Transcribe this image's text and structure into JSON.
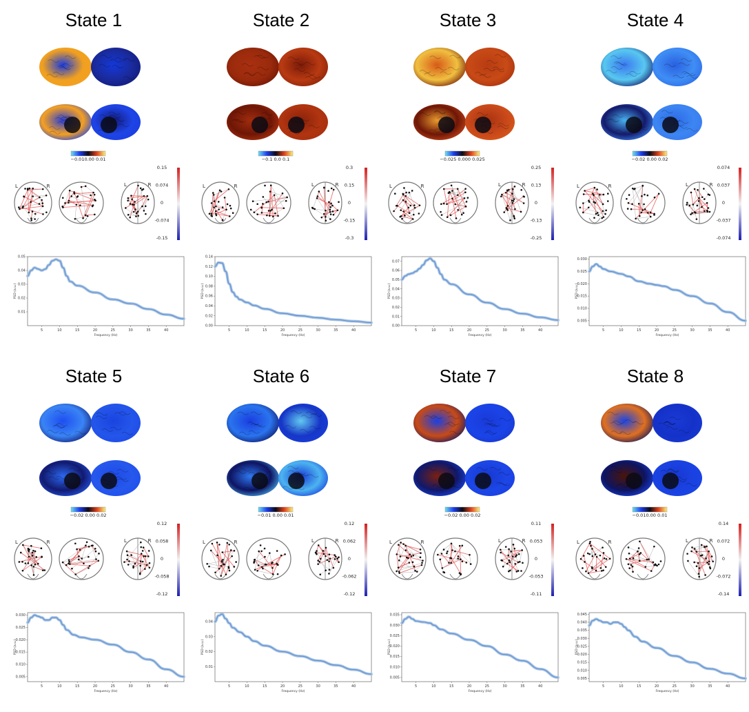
{
  "states": [
    {
      "title": "State 1",
      "brain_colorbar_ticks": "−0.010.00 0.01",
      "brain_colormap": "cold-hot",
      "brain_tones": [
        "#1a3ce0",
        "#f0a020",
        "#1438d8",
        "#1a2a9a",
        "#2a3fd8",
        "#f5a020",
        "#121a7a",
        "#1e44e6"
      ],
      "network_colorbar_ticks": [
        "0.15",
        "0.074",
        "0",
        "-0.074",
        "-0.15"
      ],
      "chart_data": {
        "type": "line",
        "xlabel": "Frequency (Hz)",
        "ylabel": "PSD (a.u.)",
        "xlim": [
          1,
          45
        ],
        "ylim": [
          0,
          0.05
        ],
        "x_ticks": [
          "5",
          "10",
          "15",
          "20",
          "25",
          "30",
          "35",
          "40"
        ],
        "y_ticks": [
          "0.01",
          "0.02",
          "0.03",
          "0.04",
          "0.05"
        ],
        "series": [
          {
            "x": [
              1,
              2,
              3,
              4,
              5,
              6,
              7,
              8,
              9,
              10,
              11,
              12,
              13,
              15,
              20,
              25,
              30,
              35,
              40,
              45
            ],
            "y": [
              0.036,
              0.04,
              0.042,
              0.041,
              0.04,
              0.041,
              0.044,
              0.047,
              0.048,
              0.047,
              0.042,
              0.036,
              0.032,
              0.029,
              0.024,
              0.019,
              0.016,
              0.012,
              0.008,
              0.005
            ]
          }
        ]
      }
    },
    {
      "title": "State 2",
      "brain_colorbar_ticks": "−0.1   0.0   0.1",
      "brain_colormap": "cold-hot",
      "brain_tones": [
        "#a83010",
        "#9a2a0c",
        "#7a1a08",
        "#b83a12",
        "#a02c0e",
        "#6e1606",
        "#8a220a",
        "#b03410"
      ],
      "network_colorbar_ticks": [
        "0.3",
        "0.15",
        "0",
        "-0.15",
        "-0.3"
      ],
      "chart_data": {
        "type": "line",
        "xlabel": "Frequency (Hz)",
        "ylabel": "PSD (a.u.)",
        "xlim": [
          1,
          45
        ],
        "ylim": [
          0,
          0.14
        ],
        "x_ticks": [
          "5",
          "10",
          "15",
          "20",
          "25",
          "30",
          "35",
          "40"
        ],
        "y_ticks": [
          "0.00",
          "0.02",
          "0.04",
          "0.06",
          "0.08",
          "0.10",
          "0.12",
          "0.14"
        ],
        "series": [
          {
            "x": [
              1,
              2,
              3,
              4,
              5,
              6,
              7,
              8,
              10,
              12,
              15,
              20,
              25,
              30,
              35,
              40,
              45
            ],
            "y": [
              0.12,
              0.128,
              0.127,
              0.11,
              0.085,
              0.068,
              0.059,
              0.053,
              0.047,
              0.041,
              0.034,
              0.025,
              0.02,
              0.016,
              0.012,
              0.009,
              0.006
            ]
          }
        ]
      }
    },
    {
      "title": "State 3",
      "brain_colorbar_ticks": "−0.025 0.000 0.025",
      "brain_colormap": "cold-hot",
      "brain_tones": [
        "#d85a18",
        "#f0c040",
        "#b83c12",
        "#c84a16",
        "#e89a30",
        "#6e1606",
        "#a83210",
        "#c8481a"
      ],
      "network_colorbar_ticks": [
        "0.25",
        "0.13",
        "0",
        "-0.13",
        "-0.25"
      ],
      "chart_data": {
        "type": "line",
        "xlabel": "Frequency (Hz)",
        "ylabel": "PSD (a.u.)",
        "xlim": [
          1,
          45
        ],
        "ylim": [
          0,
          0.075
        ],
        "x_ticks": [
          "5",
          "10",
          "15",
          "20",
          "25",
          "30",
          "35",
          "40"
        ],
        "y_ticks": [
          "0.00",
          "0.01",
          "0.02",
          "0.03",
          "0.04",
          "0.05",
          "0.06",
          "0.07"
        ],
        "series": [
          {
            "x": [
              1,
              2,
              3,
              4,
              5,
              6,
              7,
              8,
              9,
              10,
              11,
              12,
              13,
              15,
              20,
              25,
              30,
              35,
              40,
              45
            ],
            "y": [
              0.05,
              0.054,
              0.056,
              0.057,
              0.059,
              0.062,
              0.066,
              0.071,
              0.073,
              0.07,
              0.063,
              0.056,
              0.05,
              0.045,
              0.034,
              0.025,
              0.018,
              0.013,
              0.009,
              0.006
            ]
          }
        ]
      }
    },
    {
      "title": "State 4",
      "brain_colorbar_ticks": "−0.02   0.00   0.02",
      "brain_colormap": "cold-hot",
      "brain_tones": [
        "#3a78f0",
        "#58c8f0",
        "#2a60e0",
        "#3f8ef5",
        "#48b0f0",
        "#141a6a",
        "#2e6ae8",
        "#3c86f2"
      ],
      "network_colorbar_ticks": [
        "0.074",
        "0.037",
        "0",
        "-0.037",
        "-0.074"
      ],
      "chart_data": {
        "type": "line",
        "xlabel": "Frequency (Hz)",
        "ylabel": "PSD (a.u.)",
        "xlim": [
          1,
          45
        ],
        "ylim": [
          0.003,
          0.031
        ],
        "x_ticks": [
          "5",
          "10",
          "15",
          "20",
          "25",
          "30",
          "35",
          "40"
        ],
        "y_ticks": [
          "0.005",
          "0.010",
          "0.015",
          "0.020",
          "0.025",
          "0.030"
        ],
        "series": [
          {
            "x": [
              1,
              2,
              3,
              4,
              5,
              7,
              10,
              12,
              15,
              18,
              20,
              22,
              25,
              30,
              35,
              40,
              45
            ],
            "y": [
              0.025,
              0.027,
              0.028,
              0.027,
              0.026,
              0.025,
              0.024,
              0.023,
              0.021,
              0.02,
              0.0195,
              0.019,
              0.0175,
              0.015,
              0.012,
              0.0085,
              0.005
            ]
          }
        ]
      }
    },
    {
      "title": "State 5",
      "brain_colorbar_ticks": "−0.02   0.00   0.02",
      "brain_colormap": "cold-hot",
      "brain_tones": [
        "#1e4ef0",
        "#3a84f5",
        "#1a44e0",
        "#2456ea",
        "#2c68f0",
        "#121a70",
        "#1e4ae8",
        "#2658ec"
      ],
      "network_colorbar_ticks": [
        "0.12",
        "0.058",
        "0",
        "-0.058",
        "-0.12"
      ],
      "chart_data": {
        "type": "line",
        "xlabel": "Frequency (Hz)",
        "ylabel": "PSD (a.u.)",
        "xlim": [
          1,
          45
        ],
        "ylim": [
          0.003,
          0.031
        ],
        "x_ticks": [
          "5",
          "10",
          "15",
          "20",
          "25",
          "30",
          "35",
          "40"
        ],
        "y_ticks": [
          "0.005",
          "0.010",
          "0.015",
          "0.020",
          "0.025",
          "0.030"
        ],
        "series": [
          {
            "x": [
              1,
              2,
              3,
              4,
              5,
              6,
              7,
              8,
              9,
              10,
              11,
              12,
              14,
              16,
              20,
              25,
              30,
              35,
              40,
              45
            ],
            "y": [
              0.027,
              0.029,
              0.03,
              0.0295,
              0.029,
              0.028,
              0.028,
              0.029,
              0.029,
              0.028,
              0.026,
              0.024,
              0.022,
              0.021,
              0.02,
              0.018,
              0.015,
              0.012,
              0.008,
              0.005
            ]
          }
        ]
      }
    },
    {
      "title": "State 6",
      "brain_colorbar_ticks": "−0.01   0.00   0.01",
      "brain_colormap": "cold-hot",
      "brain_tones": [
        "#1a3ee0",
        "#2a74ee",
        "#62c8f0",
        "#1636c8",
        "#2e78f0",
        "#0e1462",
        "#1a3ed8",
        "#4cb4f0"
      ],
      "network_colorbar_ticks": [
        "0.12",
        "0.062",
        "0",
        "-0.062",
        "-0.12"
      ],
      "chart_data": {
        "type": "line",
        "xlabel": "Frequency (Hz)",
        "ylabel": "PSD (a.u.)",
        "xlim": [
          1,
          45
        ],
        "ylim": [
          0,
          0.046
        ],
        "x_ticks": [
          "5",
          "10",
          "15",
          "20",
          "25",
          "30",
          "35",
          "40"
        ],
        "y_ticks": [
          "0.01",
          "0.02",
          "0.03",
          "0.04"
        ],
        "series": [
          {
            "x": [
              1,
              2,
              3,
              4,
              5,
              6,
              8,
              10,
              12,
              15,
              20,
              25,
              30,
              35,
              40,
              45
            ],
            "y": [
              0.04,
              0.044,
              0.045,
              0.042,
              0.039,
              0.036,
              0.033,
              0.03,
              0.027,
              0.024,
              0.02,
              0.017,
              0.014,
              0.011,
              0.008,
              0.005
            ]
          }
        ]
      }
    },
    {
      "title": "State 7",
      "brain_colorbar_ticks": "−0.02   0.00   0.02",
      "brain_colormap": "cold-hot",
      "brain_tones": [
        "#1a40e4",
        "#c84a16",
        "#1a3ad8",
        "#1a44e8",
        "#7a2010",
        "#10186a",
        "#1838d0",
        "#1c46e6"
      ],
      "network_colorbar_ticks": [
        "0.11",
        "0.053",
        "0",
        "-0.053",
        "-0.11"
      ],
      "chart_data": {
        "type": "line",
        "xlabel": "Frequency (Hz)",
        "ylabel": "PSD (a.u.)",
        "xlim": [
          1,
          45
        ],
        "ylim": [
          0.003,
          0.036
        ],
        "x_ticks": [
          "5",
          "10",
          "15",
          "20",
          "25",
          "30",
          "35",
          "40"
        ],
        "y_ticks": [
          "0.005",
          "0.010",
          "0.015",
          "0.020",
          "0.025",
          "0.030",
          "0.035"
        ],
        "series": [
          {
            "x": [
              1,
              2,
              3,
              4,
              5,
              7,
              9,
              10,
              12,
              15,
              20,
              25,
              30,
              35,
              40,
              45
            ],
            "y": [
              0.031,
              0.033,
              0.034,
              0.033,
              0.032,
              0.0315,
              0.031,
              0.03,
              0.028,
              0.026,
              0.023,
              0.02,
              0.016,
              0.013,
              0.009,
              0.005
            ]
          }
        ]
      }
    },
    {
      "title": "State 8",
      "brain_colorbar_ticks": "−0.010.00 0.01",
      "brain_colormap": "cold-hot",
      "brain_tones": [
        "#1a44e4",
        "#e07020",
        "#1a3ad6",
        "#1432c8",
        "#4a1408",
        "#0e1460",
        "#1838d2",
        "#1a42e2"
      ],
      "network_colorbar_ticks": [
        "0.14",
        "0.072",
        "0",
        "-0.072",
        "-0.14"
      ],
      "chart_data": {
        "type": "line",
        "xlabel": "Frequency (Hz)",
        "ylabel": "PSD (a.u.)",
        "xlim": [
          1,
          45
        ],
        "ylim": [
          0.003,
          0.046
        ],
        "x_ticks": [
          "5",
          "10",
          "15",
          "20",
          "25",
          "30",
          "35",
          "40"
        ],
        "y_ticks": [
          "0.005",
          "0.010",
          "0.015",
          "0.020",
          "0.025",
          "0.030",
          "0.035",
          "0.040",
          "0.045"
        ],
        "series": [
          {
            "x": [
              1,
              2,
              3,
              4,
              5,
              6,
              7,
              8,
              9,
              10,
              11,
              12,
              14,
              16,
              20,
              25,
              30,
              35,
              40,
              45
            ],
            "y": [
              0.038,
              0.041,
              0.042,
              0.041,
              0.04,
              0.04,
              0.039,
              0.04,
              0.04,
              0.039,
              0.037,
              0.035,
              0.031,
              0.028,
              0.024,
              0.019,
              0.015,
              0.011,
              0.008,
              0.005
            ]
          }
        ]
      }
    }
  ]
}
